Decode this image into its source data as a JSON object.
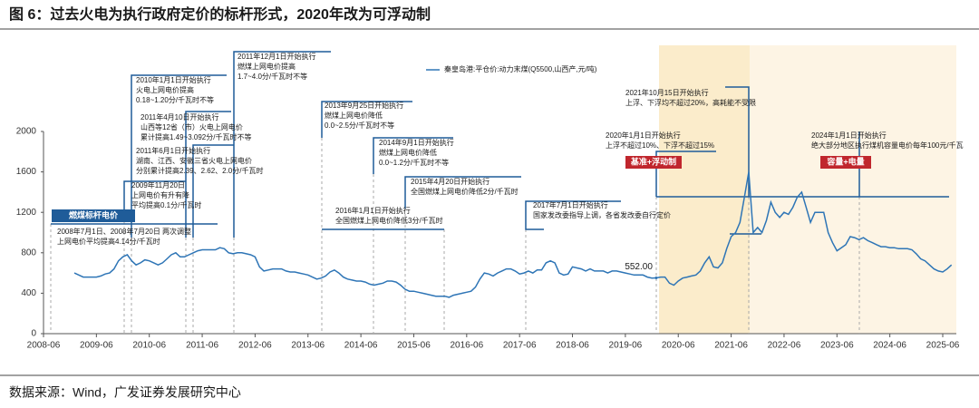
{
  "chart_data": {
    "type": "line",
    "title": "图 6：过去火电为执行政府定价的标杆形式，2020年改为可浮动制",
    "source": "数据来源：Wind，广发证券发展研究中心",
    "xlim": [
      "2008-06",
      "2025-06"
    ],
    "xticks": [
      "2008-06",
      "2009-06",
      "2010-06",
      "2011-06",
      "2012-06",
      "2013-06",
      "2014-06",
      "2015-06",
      "2016-06",
      "2017-06",
      "2018-06",
      "2019-06",
      "2020-06",
      "2021-06",
      "2022-06",
      "2023-06",
      "2024-06",
      "2025-06"
    ],
    "ylim": [
      0,
      2000
    ],
    "yticks": [
      0,
      400,
      800,
      1200,
      1600,
      2000
    ],
    "x": [
      "2009-01",
      "2009-02",
      "2009-03",
      "2009-04",
      "2009-05",
      "2009-06",
      "2009-07",
      "2009-08",
      "2009-09",
      "2009-10",
      "2009-11",
      "2009-12",
      "2010-01",
      "2010-02",
      "2010-03",
      "2010-04",
      "2010-05",
      "2010-06",
      "2010-07",
      "2010-08",
      "2010-09",
      "2010-10",
      "2010-11",
      "2010-12",
      "2011-01",
      "2011-02",
      "2011-03",
      "2011-04",
      "2011-05",
      "2011-06",
      "2011-07",
      "2011-08",
      "2011-09",
      "2011-10",
      "2011-11",
      "2011-12",
      "2012-01",
      "2012-02",
      "2012-03",
      "2012-04",
      "2012-05",
      "2012-06",
      "2012-07",
      "2012-08",
      "2012-09",
      "2012-10",
      "2012-11",
      "2012-12",
      "2013-01",
      "2013-02",
      "2013-03",
      "2013-04",
      "2013-05",
      "2013-06",
      "2013-07",
      "2013-08",
      "2013-09",
      "2013-10",
      "2013-11",
      "2013-12",
      "2014-01",
      "2014-02",
      "2014-03",
      "2014-04",
      "2014-05",
      "2014-06",
      "2014-07",
      "2014-08",
      "2014-09",
      "2014-10",
      "2014-11",
      "2014-12",
      "2015-01",
      "2015-02",
      "2015-03",
      "2015-04",
      "2015-05",
      "2015-06",
      "2015-07",
      "2015-08",
      "2015-09",
      "2015-10",
      "2015-11",
      "2015-12",
      "2016-01",
      "2016-02",
      "2016-03",
      "2016-04",
      "2016-05",
      "2016-06",
      "2016-07",
      "2016-08",
      "2016-09",
      "2016-10",
      "2016-11",
      "2016-12",
      "2017-01",
      "2017-02",
      "2017-03",
      "2017-04",
      "2017-05",
      "2017-06",
      "2017-07",
      "2017-08",
      "2017-09",
      "2017-10",
      "2017-11",
      "2017-12",
      "2018-01",
      "2018-02",
      "2018-03",
      "2018-04",
      "2018-05",
      "2018-06",
      "2018-07",
      "2018-08",
      "2018-09",
      "2018-10",
      "2018-11",
      "2018-12",
      "2019-01",
      "2019-02",
      "2019-03",
      "2019-04",
      "2019-05",
      "2019-06",
      "2019-07",
      "2019-08",
      "2019-09",
      "2019-10",
      "2019-11",
      "2019-12",
      "2020-01",
      "2020-02",
      "2020-03",
      "2020-04",
      "2020-05",
      "2020-06",
      "2020-07",
      "2020-08",
      "2020-09",
      "2020-10",
      "2020-11",
      "2020-12",
      "2021-01",
      "2021-02",
      "2021-03",
      "2021-04",
      "2021-05",
      "2021-06",
      "2021-07",
      "2021-08",
      "2021-09",
      "2021-10",
      "2021-11",
      "2021-12",
      "2022-01",
      "2022-02",
      "2022-03",
      "2022-04",
      "2022-05",
      "2022-06",
      "2022-07",
      "2022-08",
      "2022-09",
      "2022-10",
      "2022-11",
      "2022-12",
      "2023-01",
      "2023-02",
      "2023-03",
      "2023-04",
      "2023-05",
      "2023-06",
      "2023-07",
      "2023-08",
      "2023-09",
      "2023-10",
      "2023-11",
      "2023-12",
      "2024-01",
      "2024-02",
      "2024-03",
      "2024-04",
      "2024-05",
      "2024-06",
      "2024-07",
      "2024-08",
      "2024-09",
      "2024-10",
      "2024-11",
      "2024-12",
      "2025-01",
      "2025-02",
      "2025-03",
      "2025-04",
      "2025-05",
      "2025-06",
      "2025-07",
      "2025-08"
    ],
    "series": [
      {
        "name": "秦皇岛港:平仓价:动力末煤(Q5500,山西产,元/吨)",
        "color": "#2e75b6",
        "values": [
          600,
          580,
          560,
          560,
          560,
          560,
          570,
          590,
          600,
          640,
          720,
          760,
          780,
          720,
          680,
          700,
          730,
          720,
          700,
          680,
          700,
          740,
          780,
          800,
          760,
          760,
          780,
          800,
          820,
          830,
          830,
          830,
          830,
          850,
          840,
          800,
          790,
          800,
          800,
          790,
          780,
          760,
          660,
          620,
          630,
          640,
          640,
          640,
          620,
          610,
          610,
          600,
          590,
          580,
          560,
          540,
          550,
          570,
          610,
          630,
          600,
          560,
          540,
          530,
          520,
          520,
          510,
          490,
          480,
          490,
          500,
          520,
          520,
          510,
          480,
          440,
          420,
          420,
          410,
          400,
          390,
          380,
          370,
          370,
          370,
          360,
          380,
          390,
          400,
          410,
          420,
          460,
          540,
          600,
          590,
          570,
          600,
          620,
          640,
          640,
          620,
          590,
          600,
          620,
          600,
          630,
          630,
          700,
          720,
          700,
          600,
          580,
          590,
          660,
          650,
          640,
          620,
          640,
          620,
          620,
          620,
          600,
          620,
          620,
          610,
          600,
          590,
          580,
          580,
          580,
          560,
          550,
          552,
          560,
          560,
          500,
          480,
          520,
          550,
          560,
          570,
          580,
          620,
          700,
          760,
          660,
          650,
          700,
          840,
          960,
          1000,
          1100,
          1350,
          1600,
          1000,
          1050,
          1000,
          1120,
          1300,
          1200,
          1150,
          1200,
          1180,
          1250,
          1350,
          1400,
          1250,
          1100,
          1200,
          1200,
          1200,
          1000,
          900,
          820,
          850,
          880,
          960,
          950,
          930,
          950,
          920,
          900,
          880,
          860,
          860,
          850,
          850,
          840,
          840,
          840,
          830,
          790,
          740,
          720,
          680,
          640,
          620,
          610,
          640,
          680
        ]
      }
    ],
    "point_label": {
      "x": "2020-01",
      "value": 552,
      "label": "552.00"
    },
    "annotations": [
      {
        "lines": [
          "燃煤标杆电价"
        ],
        "color": "#1f5c99"
      },
      {
        "lines": [
          "2008年7月1日、2008年7月20日 两次调整",
          "上网电价平均提高4.14分/千瓦时"
        ]
      },
      {
        "lines": [
          "2009年11月20日",
          "上网电价有升有降",
          "平均提高0.1分/千瓦时"
        ]
      },
      {
        "lines": [
          "2010年1月1日开始执行",
          "火电上网电价提高",
          "0.18~1.20分/千瓦时不等"
        ]
      },
      {
        "lines": [
          "2011年4月10日开始执行",
          "山西等12省（市）火电上网电价",
          "累计提高1.49~3.092分/千瓦时不等"
        ]
      },
      {
        "lines": [
          "2011年6月1日开始执行",
          "湖南、江西、安徽三省火电上网电价",
          "分别累计提高2.39、2.62、2.0分/千瓦时"
        ]
      },
      {
        "lines": [
          "2011年12月1日开始执行",
          "燃煤上网电价提高",
          "1.7~4.0分/千瓦时不等"
        ]
      },
      {
        "lines": [
          "2013年9月25日开始执行",
          "燃煤上网电价降低",
          "0.0~2.5分/千瓦时不等"
        ]
      },
      {
        "lines": [
          "2014年9月1日开始执行",
          "燃煤上网电价降低",
          "0.0~1.2分/千瓦时不等"
        ]
      },
      {
        "lines": [
          "2015年4月20日开始执行",
          "全国燃煤上网电价降低2分/千瓦时"
        ]
      },
      {
        "lines": [
          "2016年1月1日开始执行",
          "全国燃煤上网电价降低3分/千瓦时"
        ]
      },
      {
        "lines": [
          "2017年7月1日开始执行",
          "国家发改委指导上调，各省发改委自行定价"
        ]
      },
      {
        "lines": [
          "2020年1月1日开始执行",
          "上浮不超过10%、下浮不超过15%"
        ]
      },
      {
        "lines": [
          "基准+浮动制"
        ],
        "color": "#c0262d"
      },
      {
        "lines": [
          "2021年10月15日开始执行",
          "上浮、下浮均不超过20%，高耗能不受限"
        ]
      },
      {
        "lines": [
          "2024年1月1日开始执行",
          "绝大部分地区执行煤机容量电价每年100元/千瓦"
        ]
      },
      {
        "lines": [
          "容量+电量"
        ],
        "color": "#c0262d"
      }
    ]
  }
}
